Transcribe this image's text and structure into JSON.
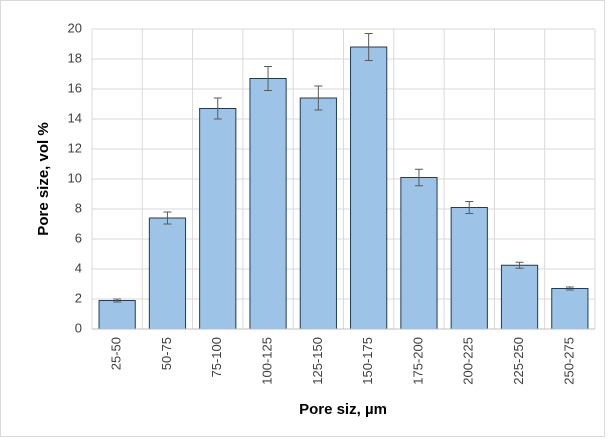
{
  "chart_data": {
    "type": "bar",
    "x_label": "Pore siz, µm",
    "y_label": "Pore size, vol %",
    "categories": [
      "25-50",
      "50-75",
      "75-100",
      "100-125",
      "125-150",
      "150-175",
      "175-200",
      "200-225",
      "225-250",
      "250-275"
    ],
    "values": [
      1.9,
      7.4,
      14.7,
      16.7,
      15.4,
      18.8,
      10.1,
      8.1,
      4.25,
      2.7
    ],
    "errors": [
      0.1,
      0.4,
      0.7,
      0.8,
      0.8,
      0.9,
      0.55,
      0.4,
      0.2,
      0.1
    ],
    "color": "#9dc3e6",
    "ylim": [
      0,
      20
    ],
    "yticks": [
      0,
      2,
      4,
      6,
      8,
      10,
      12,
      14,
      16,
      18,
      20
    ],
    "grid": true
  }
}
